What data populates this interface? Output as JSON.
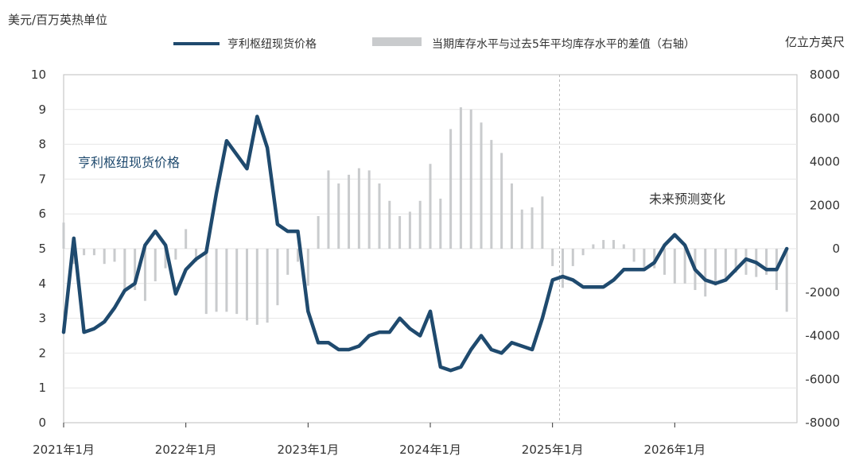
{
  "chart_data": {
    "type": "bar+line",
    "left_axis_label": "美元/百万英热单位",
    "right_axis_label": "亿立方英尺",
    "left_ylim": [
      0,
      10
    ],
    "left_ticks": [
      "0",
      "1",
      "2",
      "3",
      "4",
      "5",
      "6",
      "7",
      "8",
      "9",
      "10"
    ],
    "right_ylim": [
      -8000,
      8000
    ],
    "right_ticks": [
      "-8000",
      "-6000",
      "-4000",
      "-2000",
      "0",
      "2000",
      "4000",
      "6000",
      "8000"
    ],
    "x_start": "2021-01",
    "x_end": "2027-01",
    "x_ticks": [
      {
        "label": "2021年1月",
        "date": "2021-01"
      },
      {
        "label": "2022年1月",
        "date": "2022-01"
      },
      {
        "label": "2023年1月",
        "date": "2023-01"
      },
      {
        "label": "2024年1月",
        "date": "2024-01"
      },
      {
        "label": "2025年1月",
        "date": "2025-01"
      },
      {
        "label": "2026年1月",
        "date": "2026-01"
      }
    ],
    "forecast_start": "2025-02",
    "series": [
      {
        "name": "亨利枢纽现货价格",
        "type": "line",
        "axis": "left",
        "color": "#1f4a6e",
        "points": [
          [
            "2021-01",
            2.6
          ],
          [
            "2021-02",
            5.3
          ],
          [
            "2021-03",
            2.6
          ],
          [
            "2021-04",
            2.7
          ],
          [
            "2021-05",
            2.9
          ],
          [
            "2021-06",
            3.3
          ],
          [
            "2021-07",
            3.8
          ],
          [
            "2021-08",
            4.0
          ],
          [
            "2021-09",
            5.1
          ],
          [
            "2021-10",
            5.5
          ],
          [
            "2021-11",
            5.1
          ],
          [
            "2021-12",
            3.7
          ],
          [
            "2022-01",
            4.4
          ],
          [
            "2022-02",
            4.7
          ],
          [
            "2022-03",
            4.9
          ],
          [
            "2022-04",
            6.6
          ],
          [
            "2022-05",
            8.1
          ],
          [
            "2022-06",
            7.7
          ],
          [
            "2022-07",
            7.3
          ],
          [
            "2022-08",
            8.8
          ],
          [
            "2022-09",
            7.9
          ],
          [
            "2022-10",
            5.7
          ],
          [
            "2022-11",
            5.5
          ],
          [
            "2022-12",
            5.5
          ],
          [
            "2023-01",
            3.2
          ],
          [
            "2023-02",
            2.3
          ],
          [
            "2023-03",
            2.3
          ],
          [
            "2023-04",
            2.1
          ],
          [
            "2023-05",
            2.1
          ],
          [
            "2023-06",
            2.2
          ],
          [
            "2023-07",
            2.5
          ],
          [
            "2023-08",
            2.6
          ],
          [
            "2023-09",
            2.6
          ],
          [
            "2023-10",
            3.0
          ],
          [
            "2023-11",
            2.7
          ],
          [
            "2023-12",
            2.5
          ],
          [
            "2024-01",
            3.2
          ],
          [
            "2024-02",
            1.6
          ],
          [
            "2024-03",
            1.5
          ],
          [
            "2024-04",
            1.6
          ],
          [
            "2024-05",
            2.1
          ],
          [
            "2024-06",
            2.5
          ],
          [
            "2024-07",
            2.1
          ],
          [
            "2024-08",
            2.0
          ],
          [
            "2024-09",
            2.3
          ],
          [
            "2024-10",
            2.2
          ],
          [
            "2024-11",
            2.1
          ],
          [
            "2024-12",
            3.0
          ],
          [
            "2025-01",
            4.1
          ],
          [
            "2025-02",
            4.2
          ],
          [
            "2025-03",
            4.1
          ],
          [
            "2025-04",
            3.9
          ],
          [
            "2025-05",
            3.9
          ],
          [
            "2025-06",
            3.9
          ],
          [
            "2025-07",
            4.1
          ],
          [
            "2025-08",
            4.4
          ],
          [
            "2025-09",
            4.4
          ],
          [
            "2025-10",
            4.4
          ],
          [
            "2025-11",
            4.6
          ],
          [
            "2025-12",
            5.1
          ],
          [
            "2026-01",
            5.4
          ],
          [
            "2026-02",
            5.1
          ],
          [
            "2026-03",
            4.4
          ],
          [
            "2026-04",
            4.1
          ],
          [
            "2026-05",
            4.0
          ],
          [
            "2026-06",
            4.1
          ],
          [
            "2026-07",
            4.4
          ],
          [
            "2026-08",
            4.7
          ],
          [
            "2026-09",
            4.6
          ],
          [
            "2026-10",
            4.4
          ],
          [
            "2026-11",
            4.4
          ],
          [
            "2026-12",
            5.0
          ]
        ]
      },
      {
        "name": "当期库存水平与过去5年平均库存水平的差值（右轴）",
        "type": "bar",
        "axis": "right",
        "color": "#c9cbcd",
        "points": [
          [
            "2021-01",
            1200
          ],
          [
            "2021-02",
            -700
          ],
          [
            "2021-03",
            -300
          ],
          [
            "2021-04",
            -300
          ],
          [
            "2021-05",
            -700
          ],
          [
            "2021-06",
            -600
          ],
          [
            "2021-07",
            -1900
          ],
          [
            "2021-08",
            -1900
          ],
          [
            "2021-09",
            -2400
          ],
          [
            "2021-10",
            -1500
          ],
          [
            "2021-11",
            -900
          ],
          [
            "2021-12",
            -500
          ],
          [
            "2022-01",
            900
          ],
          [
            "2022-02",
            -600
          ],
          [
            "2022-03",
            -3000
          ],
          [
            "2022-04",
            -2900
          ],
          [
            "2022-05",
            -2900
          ],
          [
            "2022-06",
            -3000
          ],
          [
            "2022-07",
            -3300
          ],
          [
            "2022-08",
            -3500
          ],
          [
            "2022-09",
            -3400
          ],
          [
            "2022-10",
            -2600
          ],
          [
            "2022-11",
            -1200
          ],
          [
            "2022-12",
            -600
          ],
          [
            "2023-01",
            -1700
          ],
          [
            "2023-02",
            1500
          ],
          [
            "2023-03",
            3600
          ],
          [
            "2023-04",
            3000
          ],
          [
            "2023-05",
            3400
          ],
          [
            "2023-06",
            3700
          ],
          [
            "2023-07",
            3600
          ],
          [
            "2023-08",
            3000
          ],
          [
            "2023-09",
            2200
          ],
          [
            "2023-10",
            1500
          ],
          [
            "2023-11",
            1700
          ],
          [
            "2023-12",
            2200
          ],
          [
            "2024-01",
            3900
          ],
          [
            "2024-02",
            2300
          ],
          [
            "2024-03",
            5500
          ],
          [
            "2024-04",
            6500
          ],
          [
            "2024-05",
            6400
          ],
          [
            "2024-06",
            5800
          ],
          [
            "2024-07",
            5000
          ],
          [
            "2024-08",
            4400
          ],
          [
            "2024-09",
            3000
          ],
          [
            "2024-10",
            1800
          ],
          [
            "2024-11",
            1900
          ],
          [
            "2024-12",
            2400
          ]
        ],
        "forecast_points": [
          [
            "2025-01",
            -800
          ],
          [
            "2025-02",
            -1800
          ],
          [
            "2025-03",
            -800
          ],
          [
            "2025-04",
            -300
          ],
          [
            "2025-05",
            200
          ],
          [
            "2025-06",
            400
          ],
          [
            "2025-07",
            400
          ],
          [
            "2025-08",
            200
          ],
          [
            "2025-09",
            -600
          ],
          [
            "2025-10",
            -1000
          ],
          [
            "2025-11",
            -900
          ],
          [
            "2025-12",
            -1200
          ],
          [
            "2026-01",
            -1600
          ],
          [
            "2026-02",
            -1600
          ],
          [
            "2026-03",
            -1900
          ],
          [
            "2026-04",
            -2200
          ],
          [
            "2026-05",
            -1700
          ],
          [
            "2026-06",
            -1400
          ],
          [
            "2026-07",
            -1100
          ],
          [
            "2026-08",
            -1200
          ],
          [
            "2026-09",
            -1300
          ],
          [
            "2026-10",
            -1200
          ],
          [
            "2026-11",
            -1900
          ],
          [
            "2026-12",
            -2900
          ]
        ]
      }
    ],
    "legend": {
      "line_label": "亨利枢纽现货价格",
      "bar_label": "当期库存水平与过去5年平均库存水平的差值（右轴）",
      "position": "top"
    },
    "annotations": {
      "series_label": "亨利枢纽现货价格",
      "forecast_label": "未来预测变化"
    }
  }
}
